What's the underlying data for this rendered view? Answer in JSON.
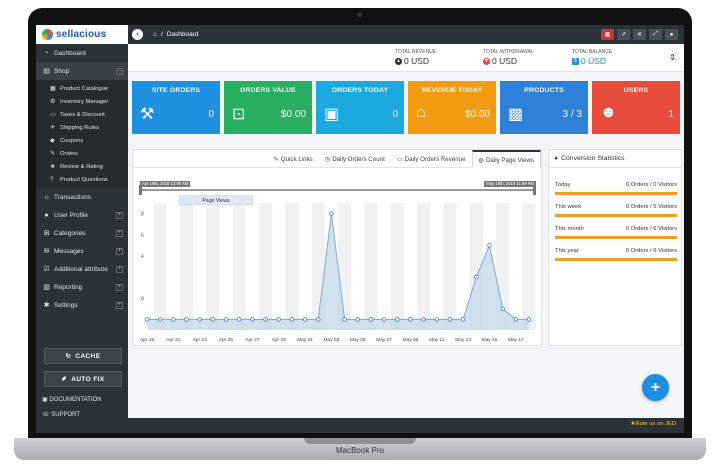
{
  "device": {
    "label": "MacBook Pro"
  },
  "brand": {
    "name": "sellacious"
  },
  "sidebar": {
    "items": [
      {
        "label": "Dashboard",
        "icon": "dashboard-icon"
      },
      {
        "label": "Shop",
        "icon": "cart-icon"
      }
    ],
    "shop_sub": [
      {
        "label": "Product Catalogue"
      },
      {
        "label": "Inventory Manager"
      },
      {
        "label": "Taxes & Discount"
      },
      {
        "label": "Shipping Rules"
      },
      {
        "label": "Coupons"
      },
      {
        "label": "Orders"
      },
      {
        "label": "Review & Rating"
      },
      {
        "label": "Product Questions"
      }
    ],
    "items2": [
      {
        "label": "Transactions"
      },
      {
        "label": "User Profile"
      },
      {
        "label": "Categories"
      },
      {
        "label": "Messages"
      },
      {
        "label": "Additional attribute"
      },
      {
        "label": "Reporting"
      },
      {
        "label": "Settings"
      }
    ],
    "cache_label": "CACHE",
    "autofix_label": "AUTO FIX",
    "documentation_label": "DOCUMENTATION",
    "support_label": "SUPPORT"
  },
  "topbar": {
    "breadcrumb": "Dashboard"
  },
  "totals": [
    {
      "label": "TOTAL REVENUE",
      "value": "0 USD",
      "color": "#2c3338"
    },
    {
      "label": "TOTAL WITHDRAWAL",
      "value": "0 USD",
      "color": "#e74c3c"
    },
    {
      "label": "TOTAL BALANCE",
      "value": "0 USD",
      "color": "#1f8fe0"
    }
  ],
  "cards": [
    {
      "title": "SITE ORDERS",
      "value": "0",
      "color": "#1f8fe0"
    },
    {
      "title": "ORDERS VALUE",
      "value": "$0.00",
      "color": "#27ae60"
    },
    {
      "title": "ORDERS TODAY",
      "value": "0",
      "color": "#1ba9e0"
    },
    {
      "title": "REVENUE TODAY",
      "value": "$0.00",
      "color": "#f39c12"
    },
    {
      "title": "PRODUCTS",
      "value": "3 / 3",
      "color": "#2f80d8"
    },
    {
      "title": "USERS",
      "value": "1",
      "color": "#e74c3c"
    }
  ],
  "chart_tabs": [
    {
      "label": "Quick Links"
    },
    {
      "label": "Daily Orders Count"
    },
    {
      "label": "Daily Orders Revenue"
    },
    {
      "label": "Daily Page Views"
    }
  ],
  "range": {
    "start": "Apr 19th, 2018 12:00 AM",
    "end": "May 18th, 2018 11:59 PM"
  },
  "chart_data": {
    "type": "area",
    "title": "",
    "xlabel": "",
    "ylabel": "",
    "categories": [
      "Apr 19",
      "Apr 20",
      "Apr 21",
      "Apr 22",
      "Apr 23",
      "Apr 24",
      "Apr 25",
      "Apr 26",
      "Apr 27",
      "Apr 28",
      "Apr 29",
      "Apr 30",
      "May 01",
      "May 02",
      "May 03",
      "May 04",
      "May 05",
      "May 06",
      "May 07",
      "May 08",
      "May 09",
      "May 10",
      "May 11",
      "May 12",
      "May 13",
      "May 14",
      "May 15",
      "May 16",
      "May 17",
      "May 18"
    ],
    "x_tick_labels": [
      "Apr 19",
      "Apr 21",
      "Apr 23",
      "Apr 25",
      "Apr 27",
      "Apr 29",
      "May 01",
      "May 03",
      "May 05",
      "May 07",
      "May 09",
      "May 11",
      "May 13",
      "May 15",
      "May 17"
    ],
    "y_ticks": [
      0,
      4,
      6,
      8
    ],
    "ylim": [
      -3,
      9
    ],
    "series": [
      {
        "name": "Page Views",
        "values": [
          -2,
          -2,
          -2,
          -2,
          -2,
          -2,
          -2,
          -2,
          -2,
          -2,
          -2,
          -2,
          -2,
          -2,
          8,
          -2,
          -2,
          -2,
          -2,
          -2,
          -2,
          -2,
          -2,
          -2,
          -2,
          2,
          5,
          -1,
          -2,
          -2
        ]
      }
    ],
    "legend_position": "top-left",
    "grid": true,
    "colors": {
      "line": "#7fa9cf",
      "fill": "#c7d9ea"
    }
  },
  "conversion": {
    "title": "Conversion Statistics",
    "rows": [
      {
        "label": "Today",
        "value": "0 Orders / 0 Visitors"
      },
      {
        "label": "This week",
        "value": "0 Orders / 5 Visitors"
      },
      {
        "label": "This month",
        "value": "0 Orders / 6 Visitors"
      },
      {
        "label": "This year",
        "value": "0 Orders / 6 Visitors"
      }
    ]
  },
  "footer": {
    "rate_label": "Rate us on JED"
  }
}
